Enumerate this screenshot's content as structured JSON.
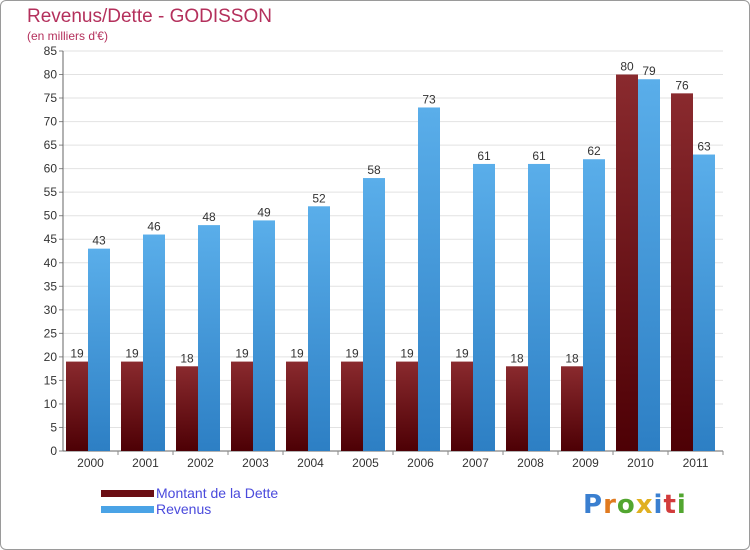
{
  "chart_data": {
    "type": "bar",
    "title": "Revenus/Dette - GODISSON",
    "subtitle": "(en milliers d'€)",
    "categories": [
      "2000",
      "2001",
      "2002",
      "2003",
      "2004",
      "2005",
      "2006",
      "2007",
      "2008",
      "2009",
      "2010",
      "2011"
    ],
    "series": [
      {
        "name": "Montant de la Dette",
        "values": [
          19,
          19,
          18,
          19,
          19,
          19,
          19,
          19,
          18,
          18,
          80,
          76
        ],
        "color": "#6b0e14"
      },
      {
        "name": "Revenus",
        "values": [
          43,
          46,
          48,
          49,
          52,
          58,
          73,
          61,
          61,
          62,
          79,
          63
        ],
        "color": "#4aa3e6"
      }
    ],
    "ylim": [
      0,
      85
    ],
    "yticks": [
      0,
      5,
      10,
      15,
      20,
      25,
      30,
      35,
      40,
      45,
      50,
      55,
      60,
      65,
      70,
      75,
      80,
      85
    ],
    "grid": true,
    "legend_position": "bottom-left"
  },
  "logo": {
    "letters": [
      "P",
      "r",
      "o",
      "x",
      "i",
      "t",
      "i"
    ],
    "colors": [
      "#3a7fd0",
      "#e07a20",
      "#52a630",
      "#e0b020",
      "#3a7fd0",
      "#d23c3c",
      "#52a630"
    ]
  }
}
